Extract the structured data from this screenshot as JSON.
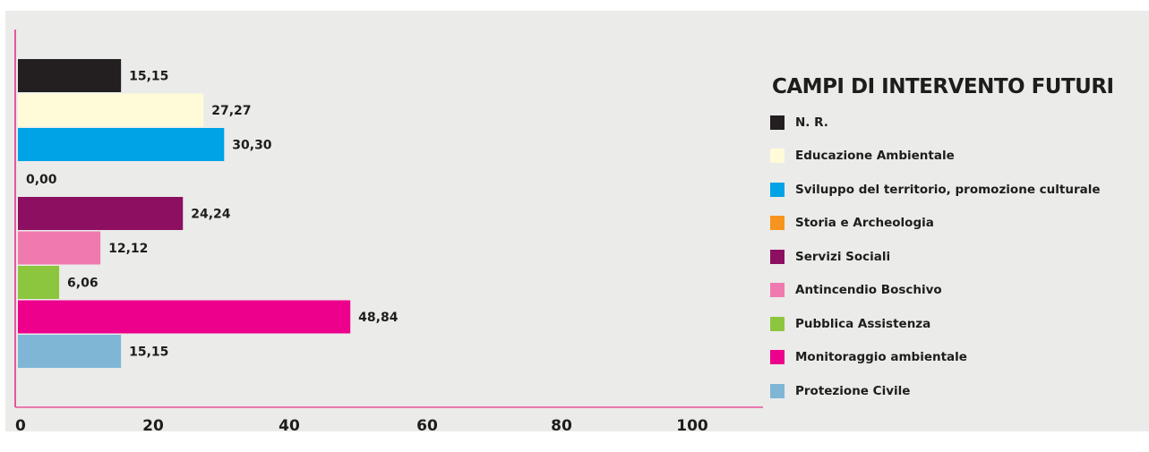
{
  "chart_data": {
    "type": "bar",
    "orientation": "horizontal",
    "categories": [
      "N. R.",
      "Educazione Ambientale",
      "Sviluppo del territorio, promozione culturale",
      "Storia e Archeologia",
      "Servizi Sociali",
      "Antincendio Boschivo",
      "Pubblica Assistenza",
      "Monitoraggio ambientale",
      "Protezione Civile"
    ],
    "values": [
      15.15,
      27.27,
      30.3,
      0.0,
      24.24,
      12.12,
      6.06,
      48.84,
      15.15
    ],
    "value_labels": [
      "15,15",
      "27,27",
      "30,30",
      "0,00",
      "24,24",
      "12,12",
      "6,06",
      "48,84",
      "15,15"
    ],
    "colors": [
      "#231f20",
      "#fffbd9",
      "#00a3e6",
      "#f7941d",
      "#8c0f62",
      "#f07aaf",
      "#8cc63f",
      "#ec008c",
      "#7fb6d6"
    ],
    "x_ticks": [
      0,
      20,
      40,
      60,
      80,
      100
    ],
    "x_tick_labels": [
      "0",
      "20",
      "40",
      "60",
      "80",
      "100"
    ],
    "xlim": [
      0,
      100
    ],
    "legend_title": "CAMPI DI INTERVENTO FUTURI",
    "legend_position": "right",
    "axis_color": "#e8559c",
    "grid": false
  }
}
